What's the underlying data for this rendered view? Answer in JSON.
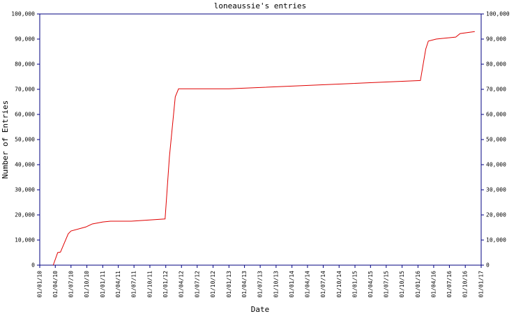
{
  "chart_data": {
    "type": "line",
    "title": "loneaussie's entries",
    "xlabel": "Date",
    "ylabel": "Number of Entries",
    "color": "#e00000",
    "axis_color": "#000080",
    "x": [
      "20/03/10",
      "15/04/10",
      "01/05/10",
      "15/06/10",
      "01/07/10",
      "25/09/10",
      "01/11/10",
      "01/01/11",
      "15/02/11",
      "15/06/11",
      "28/12/11",
      "22/01/12",
      "25/02/12",
      "15/03/12",
      "01/01/13",
      "15/01/16",
      "15/02/16",
      "01/03/16",
      "15/04/16",
      "07/08/16",
      "01/09/16",
      "25/11/16"
    ],
    "values": [
      0,
      5000,
      5200,
      12500,
      13600,
      15200,
      16400,
      17200,
      17500,
      17500,
      18400,
      43000,
      67000,
      70200,
      70200,
      73500,
      86000,
      89200,
      90000,
      90800,
      92200,
      93000
    ],
    "xlim": [
      "01/01/10",
      "01/01/17"
    ],
    "xticks": [
      "01/01/10",
      "01/04/10",
      "01/07/10",
      "01/10/10",
      "01/01/11",
      "01/04/11",
      "01/07/11",
      "01/10/11",
      "01/01/12",
      "01/04/12",
      "01/07/12",
      "01/10/12",
      "01/01/13",
      "01/04/13",
      "01/07/13",
      "01/10/13",
      "01/01/14",
      "01/04/14",
      "01/07/14",
      "01/10/14",
      "01/01/15",
      "01/04/15",
      "01/07/15",
      "01/10/15",
      "01/01/16",
      "01/04/16",
      "01/07/16",
      "01/10/16",
      "01/01/17"
    ],
    "ylim": [
      0,
      100000
    ],
    "yticks": [
      0,
      {
        "value": 10000,
        "label": "10,000"
      },
      {
        "value": 20000,
        "label": "20,000"
      },
      {
        "value": 30000,
        "label": "30,000"
      },
      {
        "value": 40000,
        "label": "40,000"
      },
      {
        "value": 50000,
        "label": "50,000"
      },
      {
        "value": 60000,
        "label": "60,000"
      },
      {
        "value": 70000,
        "label": "70,000"
      },
      {
        "value": 80000,
        "label": "80,000"
      },
      {
        "value": 90000,
        "label": "90,000"
      },
      {
        "value": 100000,
        "label": "100,000"
      }
    ],
    "y2lim": [
      0,
      100000
    ],
    "y2ticks": [
      0,
      {
        "value": 10000,
        "label": "10,000"
      },
      {
        "value": 20000,
        "label": "20,000"
      },
      {
        "value": 30000,
        "label": "30,000"
      },
      {
        "value": 40000,
        "label": "40,000"
      },
      {
        "value": 50000,
        "label": "50,000"
      },
      {
        "value": 60000,
        "label": "60,000"
      },
      {
        "value": 70000,
        "label": "70,000"
      },
      {
        "value": 80000,
        "label": "80,000"
      },
      {
        "value": 90000,
        "label": "90,000"
      },
      {
        "value": 100000,
        "label": "100,000"
      }
    ]
  }
}
